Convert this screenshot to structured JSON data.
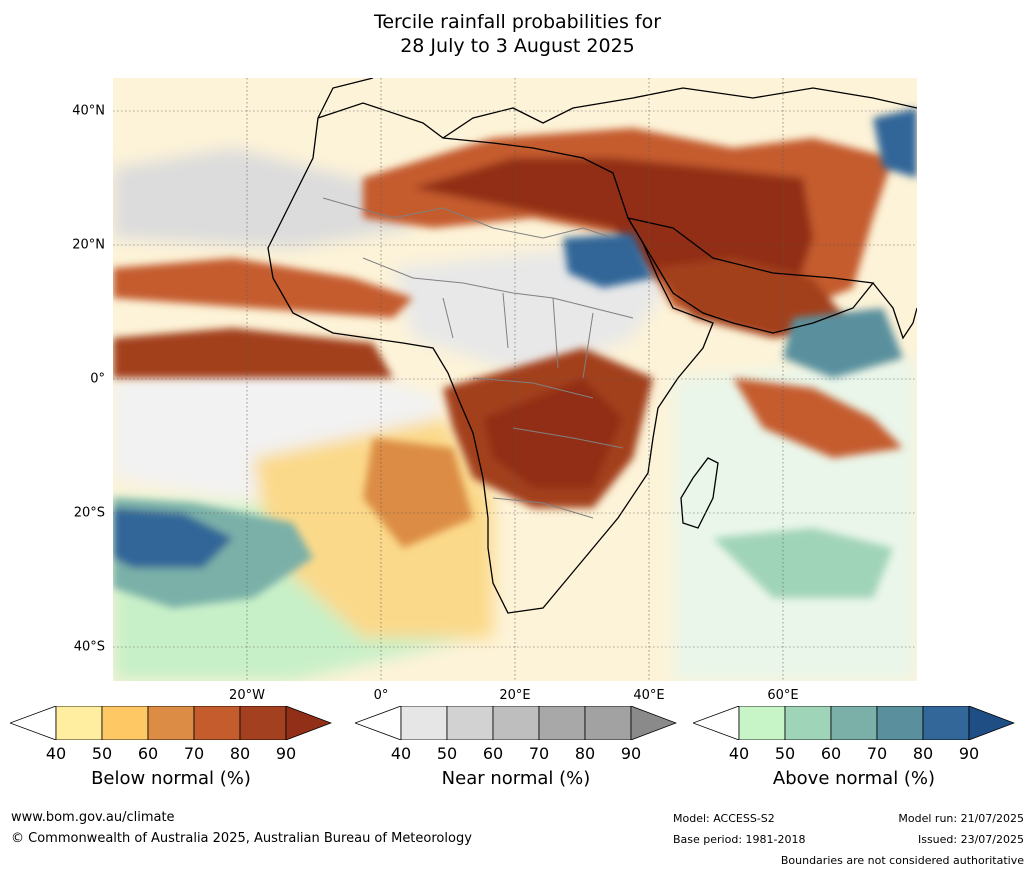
{
  "title_line1": "Tercile rainfall probabilities for",
  "title_line2": "28 July to 3 August 2025",
  "lat_labels": [
    "40°N",
    "20°N",
    "0°",
    "20°S",
    "40°S"
  ],
  "lon_labels": [
    "20°W",
    "0°",
    "20°E",
    "40°E",
    "60°E"
  ],
  "map": {
    "lon_range": [
      -40,
      80
    ],
    "lat_range": [
      -45,
      45
    ],
    "graticule_step_deg": 20,
    "category_colors": {
      "below": [
        "#ffeda0",
        "#fec965",
        "#dc8c44",
        "#c45c2d",
        "#a3401f",
        "#922f18"
      ],
      "near": [
        "#e6e6e6",
        "#d2d2d2",
        "#bebebe",
        "#a8a8a8",
        "#8a8a8a"
      ],
      "above": [
        "#c8f5c8",
        "#a0d4b8",
        "#7ab0a8",
        "#5a909e",
        "#336699",
        "#1f4e85"
      ]
    }
  },
  "colorbars": [
    {
      "label": "Below normal (%)",
      "ticks": [
        "40",
        "50",
        "60",
        "70",
        "80",
        "90"
      ],
      "colors": [
        "#ffffff",
        "#ffeda0",
        "#fec965",
        "#dc8c44",
        "#c45c2d",
        "#a3401f",
        "#922f18"
      ]
    },
    {
      "label": "Near normal (%)",
      "ticks": [
        "40",
        "50",
        "60",
        "70",
        "80",
        "90"
      ],
      "colors": [
        "#ffffff",
        "#e6e6e6",
        "#d2d2d2",
        "#bebebe",
        "#a8a8a8",
        "#a2a2a2",
        "#8a8a8a"
      ]
    },
    {
      "label": "Above normal (%)",
      "ticks": [
        "40",
        "50",
        "60",
        "70",
        "80",
        "90"
      ],
      "colors": [
        "#ffffff",
        "#c8f5c8",
        "#a0d4b8",
        "#7ab0a8",
        "#5a909e",
        "#336699",
        "#1f4e85"
      ]
    }
  ],
  "footer": {
    "url": "www.bom.gov.au/climate",
    "copyright": "© Commonwealth of Australia 2025, Australian Bureau of Meteorology",
    "model": "Model: ACCESS-S2",
    "base_period": "Base period: 1981-2018",
    "model_run": "Model run: 21/07/2025",
    "issued": "Issued: 23/07/2025",
    "disclaimer": "Boundaries are not considered authoritative"
  }
}
